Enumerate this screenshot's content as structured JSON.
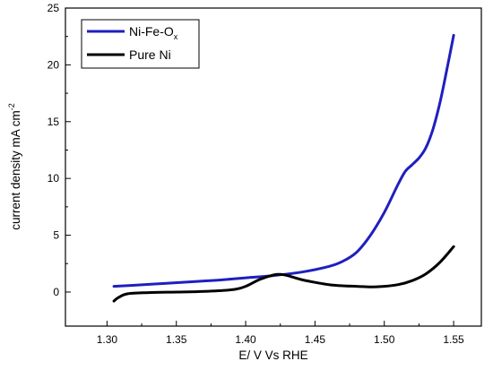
{
  "chart_data": {
    "type": "line",
    "xlabel": "E/ V Vs RHE",
    "ylabel_main": "current density mA cm",
    "ylabel_sup": "-2",
    "xlim": [
      1.27,
      1.57
    ],
    "ylim": [
      -3,
      25
    ],
    "x_ticks": [
      1.3,
      1.35,
      1.4,
      1.45,
      1.5,
      1.55
    ],
    "x_tick_labels": [
      "1.30",
      "1.35",
      "1.40",
      "1.45",
      "1.50",
      "1.55"
    ],
    "y_ticks": [
      0,
      5,
      10,
      15,
      20,
      25
    ],
    "y_tick_labels": [
      "0",
      "5",
      "10",
      "15",
      "20",
      "25"
    ],
    "legend_position": "top-left",
    "series": [
      {
        "name": "Ni-Fe-O",
        "name_sub": "x",
        "color": "#1f1fbf",
        "x": [
          1.305,
          1.32,
          1.34,
          1.36,
          1.38,
          1.4,
          1.42,
          1.44,
          1.46,
          1.47,
          1.48,
          1.49,
          1.5,
          1.51,
          1.515,
          1.52,
          1.525,
          1.53,
          1.535,
          1.54,
          1.545,
          1.55
        ],
        "y": [
          0.5,
          0.6,
          0.75,
          0.9,
          1.05,
          1.25,
          1.45,
          1.75,
          2.25,
          2.7,
          3.5,
          5.0,
          7.0,
          9.5,
          10.6,
          11.2,
          11.8,
          12.7,
          14.3,
          16.6,
          19.5,
          22.6
        ]
      },
      {
        "name": "Pure Ni",
        "color": "#000000",
        "x": [
          1.305,
          1.308,
          1.315,
          1.33,
          1.35,
          1.37,
          1.39,
          1.4,
          1.41,
          1.42,
          1.425,
          1.43,
          1.44,
          1.45,
          1.46,
          1.47,
          1.48,
          1.49,
          1.5,
          1.51,
          1.52,
          1.53,
          1.54,
          1.55
        ],
        "y": [
          -0.8,
          -0.5,
          -0.15,
          -0.05,
          0.0,
          0.05,
          0.2,
          0.5,
          1.1,
          1.5,
          1.55,
          1.45,
          1.1,
          0.85,
          0.65,
          0.55,
          0.5,
          0.45,
          0.5,
          0.65,
          1.0,
          1.6,
          2.6,
          4.0
        ]
      }
    ]
  }
}
